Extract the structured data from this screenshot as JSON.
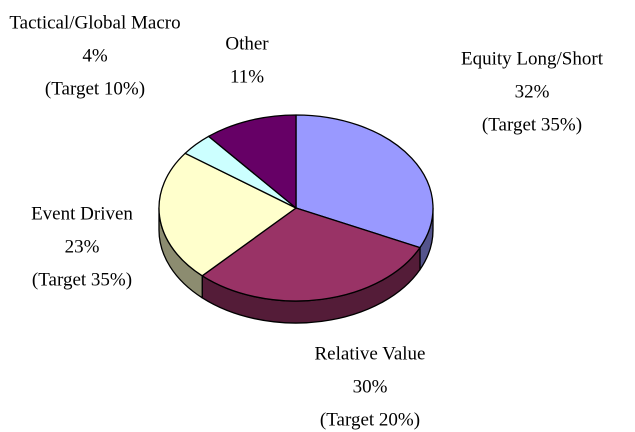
{
  "chart_data": {
    "type": "pie3d",
    "categories": [
      "Equity Long/Short",
      "Relative Value",
      "Event Driven",
      "Tactical/Global Macro",
      "Other"
    ],
    "values": [
      32,
      30,
      23,
      4,
      11
    ],
    "value_labels": [
      "32%",
      "30%",
      "23%",
      "4%",
      "11%"
    ],
    "targets": [
      "(Target 35%)",
      "(Target 20%)",
      "(Target 35%)",
      "(Target 10%)",
      null
    ],
    "colors": [
      "#9999ff",
      "#993366",
      "#ffffcc",
      "#ccffff",
      "#660066"
    ],
    "start_angle": -90,
    "direction": "clockwise"
  }
}
